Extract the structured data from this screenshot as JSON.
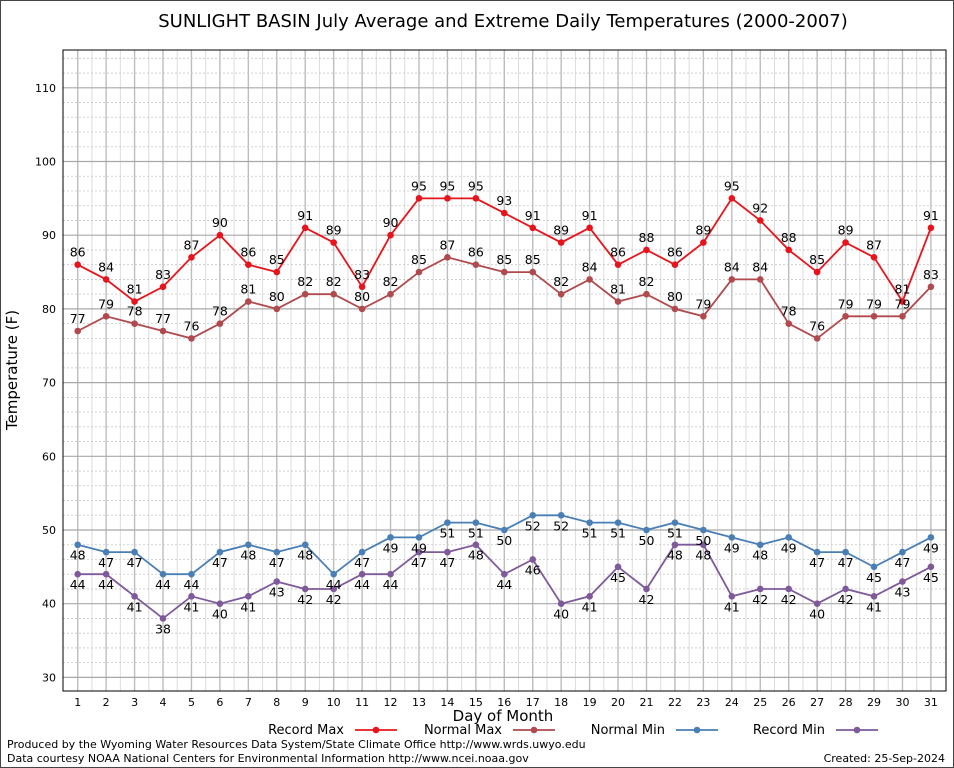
{
  "chart_data": {
    "type": "line",
    "title": "SUNLIGHT BASIN July Average and Extreme Daily Temperatures (2000-2007)",
    "xlabel": "Day of Month",
    "ylabel": "Temperature (F)",
    "ylim": [
      28,
      115
    ],
    "xlim": [
      0.5,
      31.5
    ],
    "x": [
      1,
      2,
      3,
      4,
      5,
      6,
      7,
      8,
      9,
      10,
      11,
      12,
      13,
      14,
      15,
      16,
      17,
      18,
      19,
      20,
      21,
      22,
      23,
      24,
      25,
      26,
      27,
      28,
      29,
      30,
      31
    ],
    "yticks": [
      30,
      40,
      50,
      60,
      70,
      80,
      90,
      100,
      110
    ],
    "grid": true,
    "legend_position": "bottom",
    "series": [
      {
        "name": "Record Max",
        "color": "#e8141c",
        "values": [
          86,
          84,
          81,
          83,
          87,
          90,
          86,
          85,
          91,
          89,
          83,
          90,
          95,
          95,
          95,
          93,
          91,
          89,
          91,
          86,
          88,
          86,
          89,
          95,
          92,
          88,
          85,
          89,
          87,
          81,
          91
        ]
      },
      {
        "name": "Normal Max",
        "color": "#b04a4e",
        "values": [
          77,
          79,
          78,
          77,
          76,
          78,
          81,
          80,
          82,
          82,
          80,
          82,
          85,
          87,
          86,
          85,
          85,
          82,
          84,
          81,
          82,
          80,
          79,
          84,
          84,
          78,
          76,
          79,
          79,
          79,
          83
        ]
      },
      {
        "name": "Normal Min",
        "color": "#4a7fb5",
        "values": [
          48,
          47,
          47,
          44,
          44,
          47,
          48,
          47,
          48,
          44,
          47,
          49,
          49,
          51,
          51,
          50,
          52,
          52,
          51,
          51,
          50,
          51,
          50,
          49,
          48,
          49,
          47,
          47,
          45,
          47,
          49
        ]
      },
      {
        "name": "Record Min",
        "color": "#7e5a9b",
        "values": [
          44,
          44,
          41,
          38,
          41,
          40,
          41,
          43,
          42,
          42,
          44,
          44,
          47,
          47,
          48,
          44,
          46,
          40,
          41,
          45,
          42,
          48,
          48,
          41,
          42,
          42,
          40,
          42,
          41,
          43,
          45
        ]
      }
    ]
  },
  "footer": {
    "produced_by": "Produced by the Wyoming Water Resources Data System/State Climate Office http://www.wrds.uwyo.edu",
    "data_courtesy": "Data courtesy NOAA National Centers for Environmental Information http://www.ncei.noaa.gov",
    "created": "Created:  25-Sep-2024"
  }
}
